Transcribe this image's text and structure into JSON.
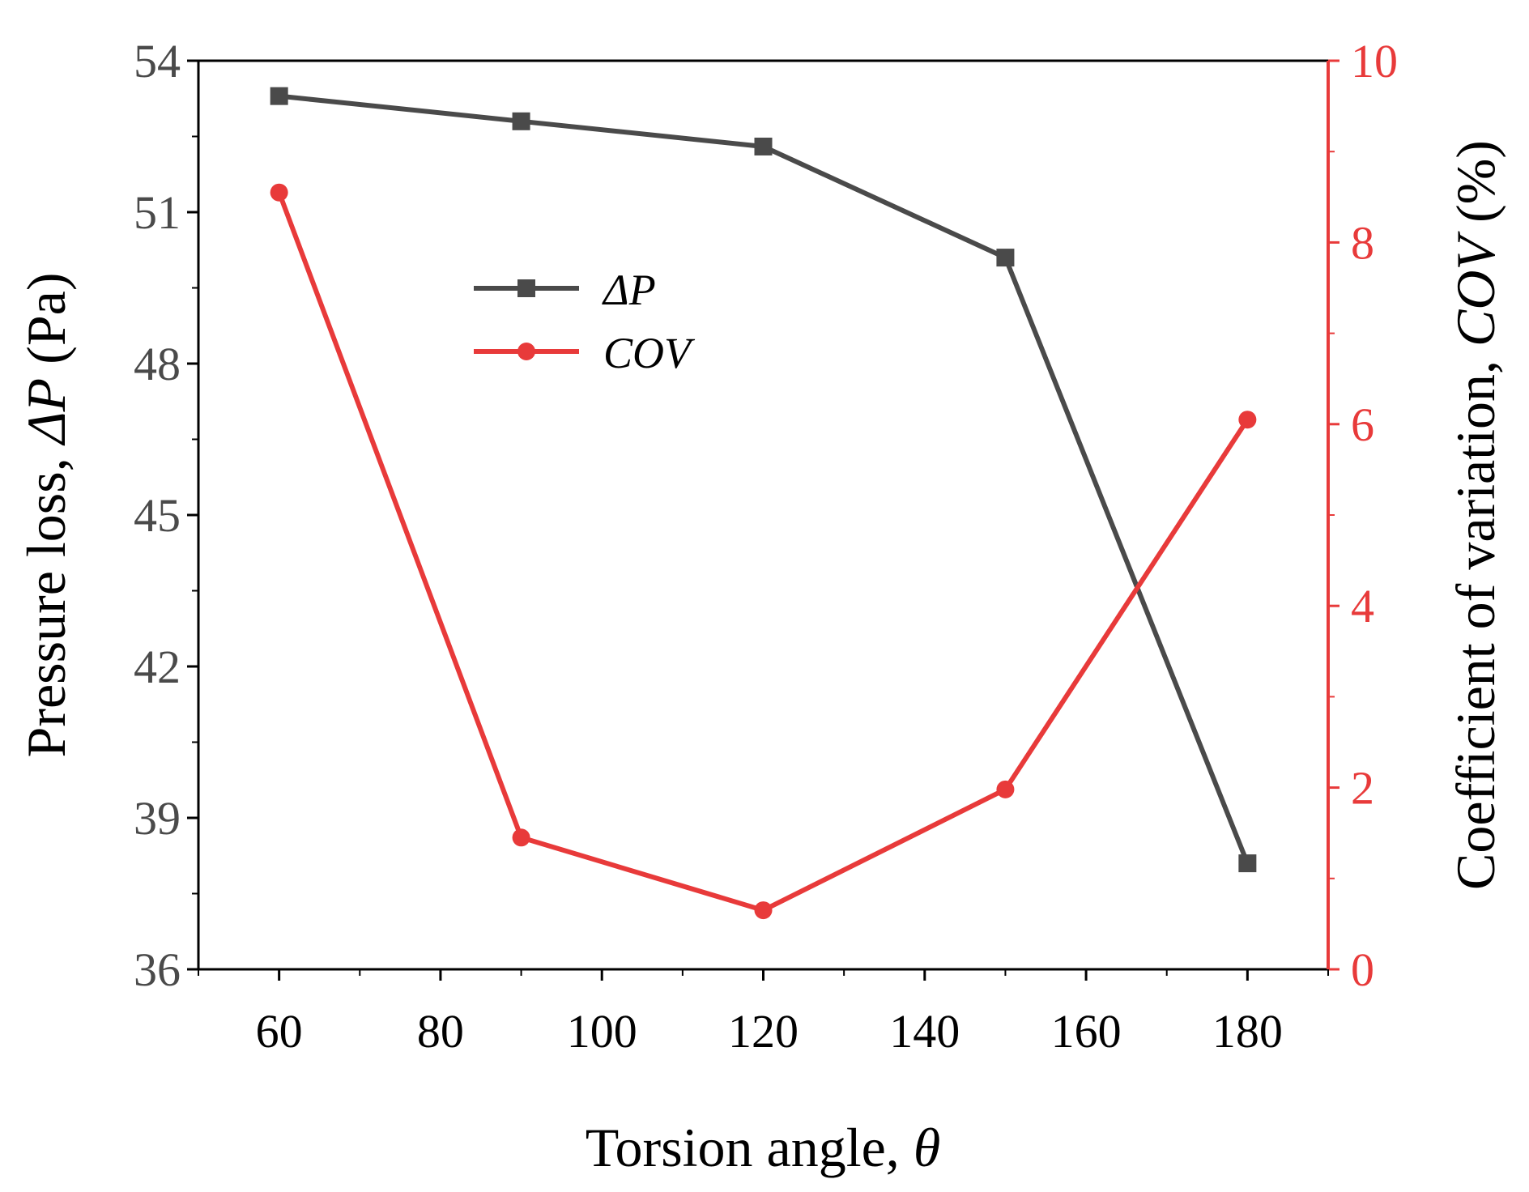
{
  "chart_data": {
    "type": "line",
    "x": [
      60,
      90,
      120,
      150,
      180
    ],
    "xlim": [
      50,
      190
    ],
    "xticks": [
      "60",
      "80",
      "100",
      "120",
      "140",
      "160",
      "180"
    ],
    "xlabel": "Torsion angle, ",
    "xlabel_symbol": "θ",
    "y_left": {
      "lim": [
        36,
        54
      ],
      "ticks": [
        "36",
        "39",
        "42",
        "45",
        "48",
        "51",
        "54"
      ],
      "label_prefix": "Pressure loss, ",
      "label_symbol": "ΔP",
      "label_suffix": " (Pa)",
      "color": "#4a4a4a"
    },
    "y_right": {
      "lim": [
        0,
        10
      ],
      "ticks": [
        "0",
        "2",
        "4",
        "6",
        "8",
        "10"
      ],
      "label_prefix": "Coefficient of variation, ",
      "label_symbol": "COV",
      "label_suffix": " (%)",
      "color": "#e83a3a"
    },
    "series": [
      {
        "name": "ΔP",
        "axis": "left",
        "marker": "square",
        "color": "#4a4a4a",
        "values": [
          53.3,
          52.8,
          52.3,
          50.1,
          38.1
        ]
      },
      {
        "name": "COV",
        "axis": "right",
        "marker": "circle",
        "color": "#e83a3a",
        "values": [
          8.55,
          1.45,
          0.65,
          1.98,
          6.05
        ]
      }
    ],
    "legend_placement": "upper-center"
  }
}
